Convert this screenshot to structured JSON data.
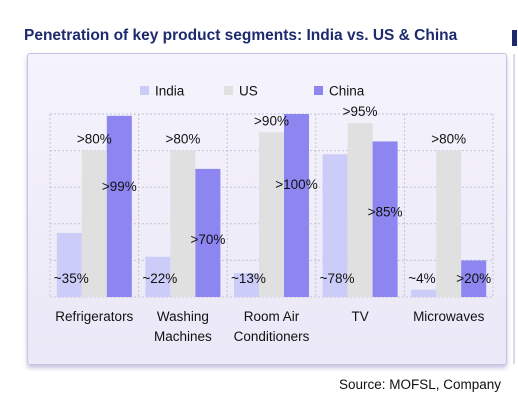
{
  "title": "Penetration of key product segments: India vs. US & China",
  "source": "Source: MOFSL, Company",
  "chart_data": {
    "type": "bar",
    "categories": [
      "Refrigerators",
      "Washing Machines",
      "Room Air Conditioners",
      "TV",
      "Microwaves"
    ],
    "category_lines": [
      [
        "Refrigerators"
      ],
      [
        "Washing",
        "Machines"
      ],
      [
        "Room Air",
        "Conditioners"
      ],
      [
        "TV"
      ],
      [
        "Microwaves"
      ]
    ],
    "series": [
      {
        "name": "India",
        "color": "#ccccf8",
        "values": [
          35,
          22,
          13,
          78,
          4
        ],
        "labels": [
          "~35%",
          "~22%",
          "~13%",
          "~78%",
          "~4%"
        ]
      },
      {
        "name": "US",
        "color": "#e0e0e0",
        "values": [
          80,
          80,
          90,
          95,
          80
        ],
        "labels": [
          ">80%",
          ">80%",
          ">90%",
          ">95%",
          ">80%"
        ]
      },
      {
        "name": "China",
        "color": "#8d85f0",
        "values": [
          99,
          70,
          100,
          85,
          20
        ],
        "labels": [
          ">99%",
          ">70%",
          ">100%",
          ">85%",
          ">20%"
        ]
      }
    ],
    "ylim": [
      0,
      100
    ],
    "grid": true,
    "legend_position": "top"
  }
}
